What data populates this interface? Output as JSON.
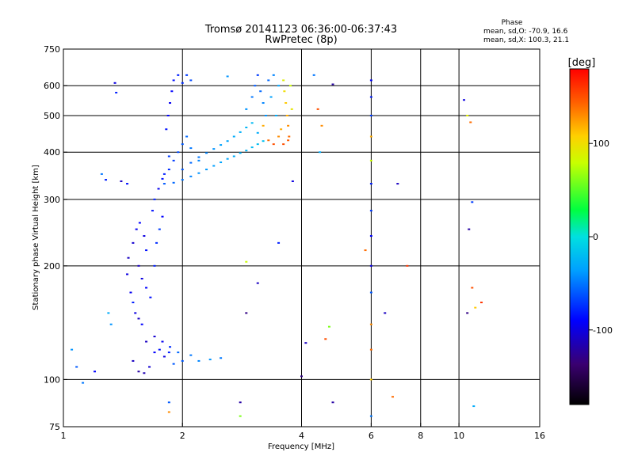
{
  "header": {
    "title": "Tromsø 20141123 06:36:00-06:37:43",
    "subtitle": "RwPretec (8p)"
  },
  "phase_info": {
    "heading": "Phase",
    "line_o": "mean, sd,O: -70.9, 16.6",
    "line_x": "mean, sd,X: 100.3, 21.1"
  },
  "colorbar": {
    "unit": "[deg]",
    "range": [
      -180,
      180
    ],
    "ticks": [
      {
        "value": 100,
        "label": "100"
      },
      {
        "value": 0,
        "label": "0"
      },
      {
        "value": -100,
        "label": "-100"
      }
    ]
  },
  "chart_data": {
    "type": "scatter",
    "xlabel": "Frequency [MHz]",
    "ylabel": "Stationary phase Virtual Height [km]",
    "xscale": "log",
    "yscale": "log",
    "xlim": [
      1,
      16
    ],
    "ylim": [
      75,
      750
    ],
    "x_ticks": [
      {
        "value": 1,
        "label": "1"
      },
      {
        "value": 2,
        "label": "2"
      },
      {
        "value": 4,
        "label": "4"
      },
      {
        "value": 6,
        "label": "6"
      },
      {
        "value": 8,
        "label": "8"
      },
      {
        "value": 10,
        "label": "10"
      },
      {
        "value": 16,
        "label": "16"
      }
    ],
    "y_ticks": [
      {
        "value": 75,
        "label": "75"
      },
      {
        "value": 100,
        "label": "100"
      },
      {
        "value": 200,
        "label": "200"
      },
      {
        "value": 300,
        "label": "300"
      },
      {
        "value": 400,
        "label": "400"
      },
      {
        "value": 500,
        "label": "500"
      },
      {
        "value": 600,
        "label": "600"
      },
      {
        "value": 750,
        "label": "750"
      }
    ],
    "grid_x": [
      2,
      4,
      6,
      8,
      10
    ],
    "grid_y": [
      100,
      200,
      300,
      400,
      500,
      600
    ],
    "points": [
      [
        1.05,
        120,
        -40
      ],
      [
        1.08,
        108,
        -60
      ],
      [
        1.12,
        98,
        -50
      ],
      [
        1.2,
        105,
        -90
      ],
      [
        1.25,
        350,
        -50
      ],
      [
        1.28,
        338,
        -80
      ],
      [
        1.3,
        150,
        -30
      ],
      [
        1.32,
        140,
        -40
      ],
      [
        1.35,
        610,
        -100
      ],
      [
        1.36,
        575,
        -80
      ],
      [
        1.4,
        335,
        -110
      ],
      [
        1.45,
        330,
        -85
      ],
      [
        1.5,
        160,
        -80
      ],
      [
        1.52,
        150,
        -100
      ],
      [
        1.55,
        145,
        -110
      ],
      [
        1.58,
        140,
        -90
      ],
      [
        1.48,
        170,
        -95
      ],
      [
        1.45,
        190,
        -100
      ],
      [
        1.46,
        210,
        -110
      ],
      [
        1.5,
        230,
        -105
      ],
      [
        1.53,
        250,
        -95
      ],
      [
        1.56,
        260,
        -90
      ],
      [
        1.6,
        240,
        -100
      ],
      [
        1.62,
        220,
        -85
      ],
      [
        1.55,
        200,
        -110
      ],
      [
        1.58,
        185,
        -100
      ],
      [
        1.62,
        175,
        -90
      ],
      [
        1.66,
        165,
        -85
      ],
      [
        1.7,
        200,
        -80
      ],
      [
        1.72,
        230,
        -75
      ],
      [
        1.75,
        250,
        -70
      ],
      [
        1.78,
        270,
        -90
      ],
      [
        1.68,
        280,
        -85
      ],
      [
        1.7,
        300,
        -80
      ],
      [
        1.74,
        320,
        -95
      ],
      [
        1.78,
        340,
        -85
      ],
      [
        1.5,
        112,
        -110
      ],
      [
        1.55,
        105,
        -120
      ],
      [
        1.6,
        104,
        -115
      ],
      [
        1.65,
        108,
        -105
      ],
      [
        1.7,
        118,
        -90
      ],
      [
        1.75,
        120,
        -85
      ],
      [
        1.8,
        115,
        -100
      ],
      [
        1.85,
        118,
        -80
      ],
      [
        1.62,
        126,
        -110
      ],
      [
        1.7,
        130,
        -105
      ],
      [
        1.78,
        126,
        -95
      ],
      [
        1.86,
        122,
        -75
      ],
      [
        1.9,
        110,
        -60
      ],
      [
        1.95,
        118,
        -55
      ],
      [
        2.0,
        112,
        -60
      ],
      [
        2.1,
        116,
        -50
      ],
      [
        2.2,
        112,
        -45
      ],
      [
        2.35,
        113,
        -40
      ],
      [
        2.5,
        114,
        -50
      ],
      [
        1.8,
        350,
        -80
      ],
      [
        1.85,
        360,
        -75
      ],
      [
        1.9,
        380,
        -70
      ],
      [
        1.95,
        400,
        -65
      ],
      [
        2.0,
        420,
        -60
      ],
      [
        2.05,
        440,
        -55
      ],
      [
        2.1,
        410,
        -50
      ],
      [
        2.2,
        380,
        -45
      ],
      [
        1.82,
        460,
        -85
      ],
      [
        1.84,
        500,
        -90
      ],
      [
        1.86,
        540,
        -95
      ],
      [
        1.88,
        580,
        -90
      ],
      [
        1.9,
        620,
        -85
      ],
      [
        1.95,
        640,
        -80
      ],
      [
        2.0,
        610,
        -75
      ],
      [
        2.05,
        640,
        -70
      ],
      [
        2.1,
        620,
        -65
      ],
      [
        1.85,
        390,
        -70
      ],
      [
        1.8,
        330,
        -60
      ],
      [
        1.9,
        332,
        -55
      ],
      [
        2.0,
        338,
        -50
      ],
      [
        2.1,
        345,
        -45
      ],
      [
        2.2,
        352,
        -40
      ],
      [
        2.3,
        360,
        -38
      ],
      [
        2.4,
        368,
        -36
      ],
      [
        2.5,
        376,
        -34
      ],
      [
        2.6,
        384,
        -32
      ],
      [
        2.7,
        390,
        -30
      ],
      [
        2.8,
        398,
        -28
      ],
      [
        2.9,
        404,
        -25
      ],
      [
        3.0,
        412,
        -22
      ],
      [
        3.1,
        420,
        -20
      ],
      [
        3.2,
        428,
        -18
      ],
      [
        2.0,
        360,
        -60
      ],
      [
        2.1,
        375,
        -55
      ],
      [
        2.2,
        388,
        -50
      ],
      [
        2.3,
        398,
        -45
      ],
      [
        2.4,
        408,
        -40
      ],
      [
        2.5,
        418,
        -35
      ],
      [
        2.6,
        428,
        -33
      ],
      [
        2.7,
        440,
        -30
      ],
      [
        2.8,
        452,
        -28
      ],
      [
        2.9,
        465,
        -25
      ],
      [
        3.0,
        478,
        -22
      ],
      [
        2.9,
        520,
        -40
      ],
      [
        3.0,
        560,
        -50
      ],
      [
        3.05,
        600,
        -60
      ],
      [
        3.1,
        640,
        -70
      ],
      [
        3.15,
        580,
        -55
      ],
      [
        3.2,
        540,
        -45
      ],
      [
        3.25,
        500,
        -40
      ],
      [
        3.3,
        620,
        -55
      ],
      [
        3.35,
        560,
        -35
      ],
      [
        3.4,
        640,
        -45
      ],
      [
        3.45,
        500,
        -30
      ],
      [
        3.5,
        600,
        -35
      ],
      [
        3.1,
        450,
        -30
      ],
      [
        3.2,
        470,
        120
      ],
      [
        3.3,
        430,
        140
      ],
      [
        3.4,
        420,
        150
      ],
      [
        3.5,
        440,
        130
      ],
      [
        3.55,
        460,
        120
      ],
      [
        3.6,
        620,
        90
      ],
      [
        3.62,
        580,
        100
      ],
      [
        3.65,
        540,
        110
      ],
      [
        3.68,
        500,
        120
      ],
      [
        3.7,
        470,
        130
      ],
      [
        3.72,
        440,
        140
      ],
      [
        3.75,
        600,
        80
      ],
      [
        3.78,
        520,
        95
      ],
      [
        3.6,
        420,
        150
      ],
      [
        3.7,
        430,
        145
      ],
      [
        4.4,
        520,
        150
      ],
      [
        4.5,
        470,
        130
      ],
      [
        4.45,
        400,
        -30
      ],
      [
        4.3,
        640,
        -50
      ],
      [
        4.8,
        605,
        -120
      ],
      [
        6.0,
        620,
        -90
      ],
      [
        6.0,
        560,
        -80
      ],
      [
        6.0,
        500,
        -70
      ],
      [
        6.0,
        440,
        120
      ],
      [
        6.0,
        380,
        80
      ],
      [
        6.0,
        330,
        -80
      ],
      [
        6.0,
        280,
        -70
      ],
      [
        6.0,
        240,
        -90
      ],
      [
        6.0,
        200,
        -100
      ],
      [
        6.0,
        170,
        -60
      ],
      [
        6.0,
        140,
        130
      ],
      [
        6.0,
        120,
        140
      ],
      [
        6.0,
        100,
        110
      ],
      [
        6.0,
        80,
        -50
      ],
      [
        3.5,
        230,
        -80
      ],
      [
        3.1,
        180,
        -110
      ],
      [
        2.9,
        205,
        80
      ],
      [
        2.9,
        150,
        -130
      ],
      [
        3.8,
        335,
        -100
      ],
      [
        4.0,
        102,
        -130
      ],
      [
        4.1,
        125,
        -110
      ],
      [
        4.6,
        128,
        150
      ],
      [
        4.7,
        138,
        60
      ],
      [
        4.8,
        87,
        -120
      ],
      [
        5.8,
        220,
        140
      ],
      [
        6.5,
        150,
        -110
      ],
      [
        6.8,
        90,
        140
      ],
      [
        7.0,
        330,
        -110
      ],
      [
        7.4,
        200,
        160
      ],
      [
        10.3,
        550,
        -100
      ],
      [
        10.5,
        500,
        90
      ],
      [
        10.7,
        480,
        140
      ],
      [
        10.6,
        250,
        -120
      ],
      [
        10.5,
        150,
        -130
      ],
      [
        10.8,
        175,
        150
      ],
      [
        11.0,
        155,
        110
      ],
      [
        11.4,
        160,
        160
      ],
      [
        10.9,
        85,
        -30
      ],
      [
        10.8,
        295,
        -70
      ],
      [
        2.8,
        87,
        -120
      ],
      [
        2.8,
        80,
        60
      ],
      [
        1.85,
        87,
        -60
      ],
      [
        1.85,
        82,
        130
      ],
      [
        2.6,
        635,
        -40
      ]
    ]
  }
}
